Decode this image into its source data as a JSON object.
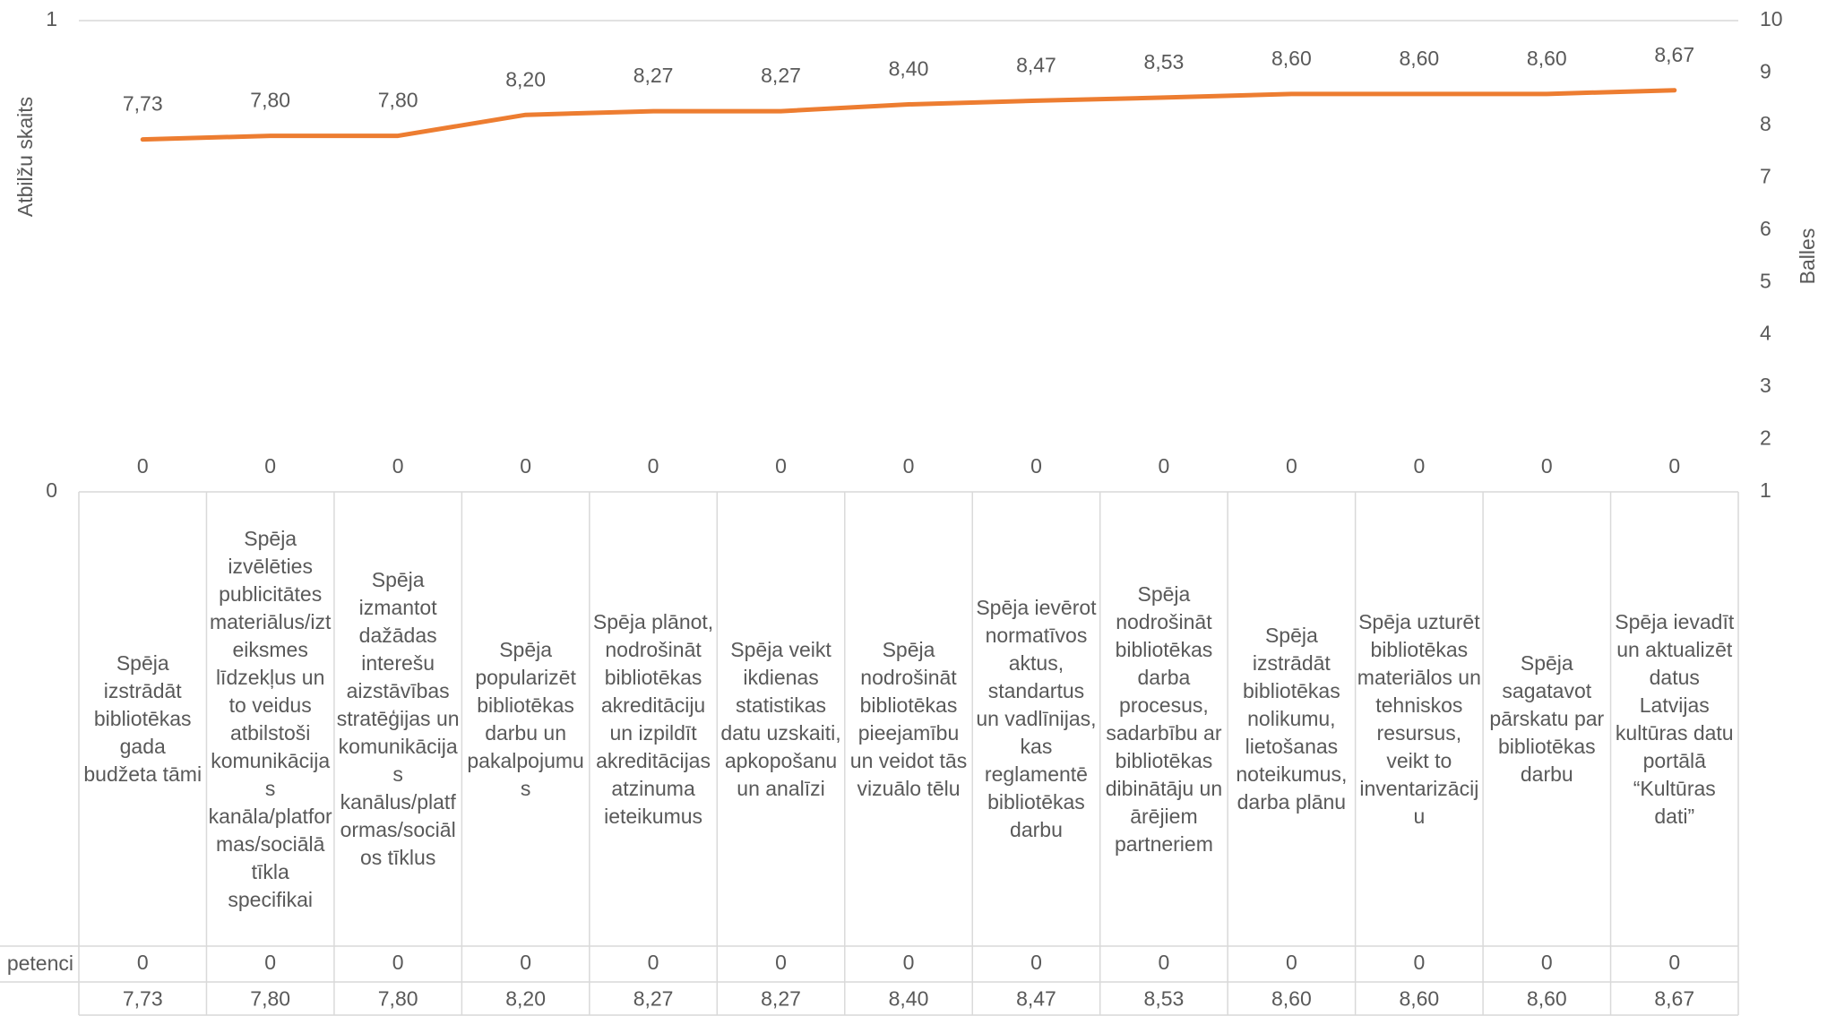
{
  "chart_data": {
    "type": "bar-line",
    "y_label": "Atbilžu skaits",
    "y2_label": "Balles",
    "categories": [
      "Spēja izstrādāt bibliotēkas gada budžeta tāmi",
      "Spēja izvēlēties publicitātes materiālus/izteiksmes līdzekļus un to veidus atbilstoši komunikācijas kanāla/platformas/sociālā tīkla specifikai",
      "Spēja izmantot dažādas interešu aizstāvības stratēģijas un komunikācijas kanālus/platformas/sociālos tīklus",
      "Spēja popularizēt bibliotēkas darbu un pakalpojumus",
      "Spēja plānot, nodrošināt bibliotēkas akreditāciju un izpildīt akreditācijas atzinuma ieteikumus",
      "Spēja veikt ikdienas statistikas datu uzskaiti, apkopošanu un analīzi",
      "Spēja nodrošināt bibliotēkas pieejamību un veidot tās vizuālo tēlu",
      "Spēja ievērot normatīvos aktus, standartus un vadlīnijas, kas reglamentē bibliotēkas darbu",
      "Spēja nodrošināt bibliotēkas darba procesus, sadarbību ar bibliotēkas dibinātāju un ārējiem partneriem",
      "Spēja izstrādāt bibliotēkas nolikumu, lietošanas noteikumus, darba plānu",
      "Spēja uzturēt bibliotēkas materiālos un tehniskos resursus, veikt to inventarizāciju",
      "Spēja sagatavot pārskatu par bibliotēkas darbu",
      "Spēja ievadīt un aktualizēt datus Latvijas kultūras datu portālā “Kultūras dati”"
    ],
    "series": [
      {
        "name": "petenci",
        "type": "bar",
        "color": "#4472c4",
        "values": [
          0,
          0,
          0,
          0,
          0,
          0,
          0,
          0,
          0,
          0,
          0,
          0,
          0
        ]
      },
      {
        "type": "line",
        "axis": "y2",
        "color": "#ed7d31",
        "values": [
          7.73,
          7.8,
          7.8,
          8.2,
          8.27,
          8.27,
          8.4,
          8.47,
          8.53,
          8.6,
          8.6,
          8.6,
          8.67
        ],
        "value_labels": [
          "7,73",
          "7,80",
          "7,80",
          "8,20",
          "8,27",
          "8,27",
          "8,40",
          "8,47",
          "8,53",
          "8,60",
          "8,60",
          "8,60",
          "8,67"
        ]
      }
    ],
    "ylim": [
      0,
      1
    ],
    "yticks": [
      0,
      1
    ],
    "y2lim": [
      1,
      10
    ],
    "y2ticks": [
      1,
      2,
      3,
      4,
      5,
      6,
      7,
      8,
      9,
      10
    ],
    "grid": true
  }
}
